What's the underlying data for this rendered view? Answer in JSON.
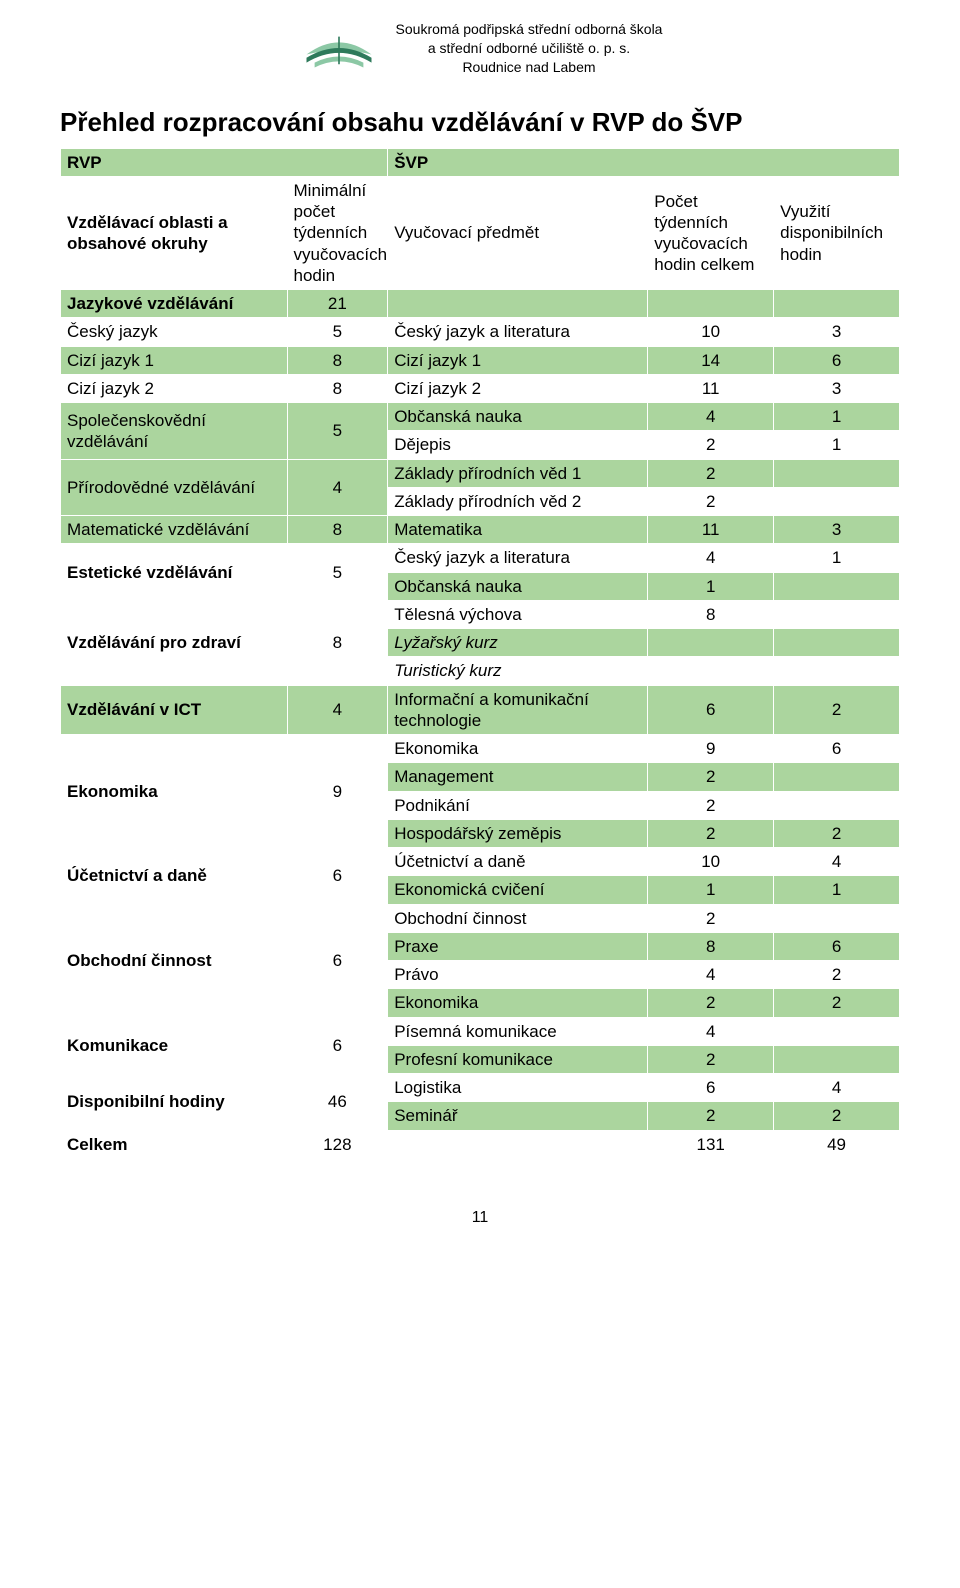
{
  "colors": {
    "green": "#abd59e",
    "white": "#ffffff",
    "border": "#ffffff",
    "text": "#000000",
    "logo_dark": "#2e7a5b",
    "logo_light": "#8cc8a5"
  },
  "fonts": {
    "body_family": "Arial",
    "body_size_pt": 13,
    "title_size_pt": 20,
    "title_weight": "bold"
  },
  "header": {
    "school_line1": "Soukromá podřipská střední odborná škola",
    "school_line2": "a střední odborné učiliště o. p. s.",
    "school_line3": "Roudnice nad Labem"
  },
  "title": "Přehled rozpracování obsahu vzdělávání v RVP do ŠVP",
  "table": {
    "headers": {
      "rvp": "RVP",
      "svp": "ŠVP",
      "area": "Vzdělávací oblasti a obsahové okruhy",
      "min": "Minimální počet týdenních vyučovacích hodin",
      "subject": "Vyučovací předmět",
      "count": "Počet týdenních vyučovacích hodin celkem",
      "use": "Využití disponibilních hodin"
    },
    "rows": [
      {
        "bg": "green",
        "a": "Jazykové vzdělávání",
        "abold": true,
        "b": "21",
        "c": "",
        "d": "",
        "e": ""
      },
      {
        "bg": "white",
        "a": "Český jazyk",
        "b": "5",
        "c": "Český jazyk a literatura",
        "d": "10",
        "e": "3"
      },
      {
        "bg": "green",
        "a": "Cizí jazyk 1",
        "b": "8",
        "c": "Cizí jazyk 1",
        "d": "14",
        "e": "6"
      },
      {
        "bg": "white",
        "a": "Cizí jazyk 2",
        "b": "8",
        "c": "Cizí jazyk 2",
        "d": "11",
        "e": "3"
      },
      {
        "bg": "green",
        "a": "Společenskovědní vzdělávání",
        "b": "5",
        "brows": 2,
        "c": "Občanská nauka",
        "d": "4",
        "e": "1"
      },
      {
        "bg": "white",
        "c": "Dějepis",
        "d": "2",
        "e": "1"
      },
      {
        "bg": "green",
        "a": "Přírodovědné vzdělávání",
        "b": "4",
        "brows": 2,
        "c": "Základy přírodních věd 1",
        "d": "2",
        "e": ""
      },
      {
        "bg": "white",
        "c": "Základy přírodních věd 2",
        "d": "2",
        "e": ""
      },
      {
        "bg": "green",
        "a": "Matematické vzdělávání",
        "b": "8",
        "c": "Matematika",
        "d": "11",
        "e": "3"
      },
      {
        "bg": "white",
        "a": "Estetické vzdělávání",
        "abold": true,
        "b": "5",
        "brows": 2,
        "c": "Český jazyk a literatura",
        "d": "4",
        "e": "1"
      },
      {
        "bg": "green",
        "c": "Občanská nauka",
        "d": "1",
        "e": ""
      },
      {
        "bg": "white",
        "a": "Vzdělávání pro zdraví",
        "abold": true,
        "b": "8",
        "brows": 3,
        "c": "Tělesná výchova",
        "d": "8",
        "e": ""
      },
      {
        "bg": "green",
        "c": "Lyžařský kurz",
        "citalic": true,
        "d": "",
        "e": ""
      },
      {
        "bg": "white",
        "c": "Turistický kurz",
        "citalic": true,
        "d": "",
        "e": ""
      },
      {
        "bg": "green",
        "a": "Vzdělávání v ICT",
        "abold": true,
        "b": "4",
        "c": "Informační a komunikační technologie",
        "d": "6",
        "e": "2"
      },
      {
        "bg": "white",
        "a": "Ekonomika",
        "abold": true,
        "b": "9",
        "brows": 4,
        "c": "Ekonomika",
        "d": "9",
        "e": "6"
      },
      {
        "bg": "green",
        "c": "Management",
        "d": "2",
        "e": ""
      },
      {
        "bg": "white",
        "c": "Podnikání",
        "d": "2",
        "e": ""
      },
      {
        "bg": "green",
        "c": "Hospodářský zeměpis",
        "d": "2",
        "e": "2"
      },
      {
        "bg": "white",
        "a": "Účetnictví a daně",
        "abold": true,
        "b": "6",
        "brows": 2,
        "c": "Účetnictví a daně",
        "d": "10",
        "e": "4"
      },
      {
        "bg": "green",
        "c": "Ekonomická cvičení",
        "d": "1",
        "e": "1"
      },
      {
        "bg": "white",
        "a": "Obchodní činnost",
        "abold": true,
        "b": "6",
        "brows": 4,
        "c": "Obchodní činnost",
        "d": "2",
        "e": ""
      },
      {
        "bg": "green",
        "c": "Praxe",
        "d": "8",
        "e": "6"
      },
      {
        "bg": "white",
        "c": "Právo",
        "d": "4",
        "e": "2"
      },
      {
        "bg": "green",
        "c": "Ekonomika",
        "d": "2",
        "e": "2"
      },
      {
        "bg": "white",
        "a": "Komunikace",
        "abold": true,
        "b": "6",
        "brows": 2,
        "c": "Písemná komunikace",
        "d": "4",
        "e": ""
      },
      {
        "bg": "green",
        "c": "Profesní komunikace",
        "d": "2",
        "e": ""
      },
      {
        "bg": "white",
        "a": "Disponibilní hodiny",
        "abold": true,
        "b": "46",
        "brows": 2,
        "c": "Logistika",
        "d": "6",
        "e": "4"
      },
      {
        "bg": "green",
        "c": "Seminář",
        "d": "2",
        "e": "2"
      },
      {
        "bg": "white",
        "a": "Celkem",
        "abold": true,
        "b": "128",
        "c": "",
        "d": "131",
        "e": "49"
      }
    ]
  },
  "pagenum": "11"
}
